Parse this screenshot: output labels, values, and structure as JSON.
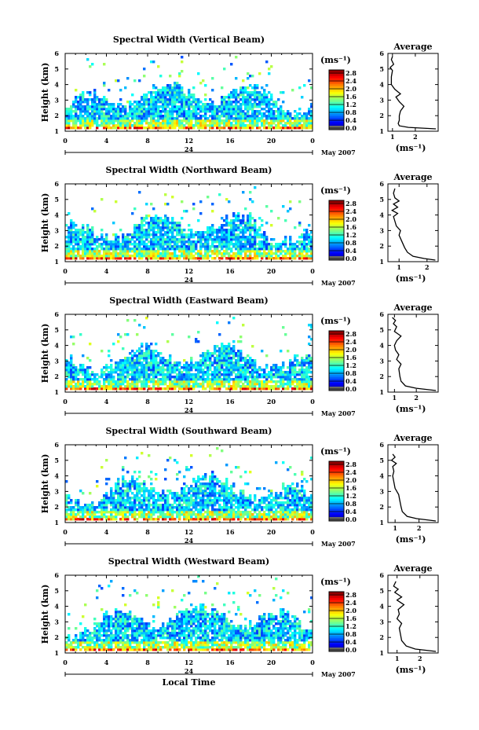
{
  "chart_data": [
    {
      "type": "heatmap",
      "title": "Spectral Width (Vertical Beam)",
      "ylabel": "Height (km)",
      "xticks": [
        "0",
        "4",
        "8",
        "12",
        "16",
        "20",
        "0"
      ],
      "yticks": [
        "1",
        "2",
        "3",
        "4",
        "5",
        "6"
      ],
      "xlim": [
        0,
        24
      ],
      "ylim": [
        1,
        6
      ],
      "day_label": "24",
      "date_label": "May 2007",
      "colorbar": {
        "unit": "(ms⁻¹)",
        "ticks": [
          "2.8",
          "2.4",
          "2.0",
          "1.6",
          "1.2",
          "0.8",
          "0.4",
          "0.0"
        ],
        "range": [
          0.0,
          2.8
        ]
      },
      "average": {
        "title": "Average",
        "xlabel": "(ms⁻¹)",
        "xticks": [
          "1",
          "2"
        ],
        "xlim": [
          0.8,
          3.0
        ],
        "yticks": [
          "1",
          "2",
          "3",
          "4",
          "5",
          "6"
        ],
        "profile": [
          [
            2.9,
            1.15
          ],
          [
            1.7,
            1.25
          ],
          [
            1.3,
            1.35
          ],
          [
            1.25,
            1.5
          ],
          [
            1.3,
            1.7
          ],
          [
            1.3,
            2.0
          ],
          [
            1.35,
            2.3
          ],
          [
            1.5,
            2.6
          ],
          [
            1.3,
            2.9
          ],
          [
            1.15,
            3.2
          ],
          [
            1.35,
            3.4
          ],
          [
            1.1,
            3.7
          ],
          [
            0.95,
            4.0
          ],
          [
            0.95,
            4.5
          ],
          [
            1.0,
            4.9
          ],
          [
            0.9,
            5.1
          ],
          [
            1.05,
            5.3
          ],
          [
            0.95,
            5.6
          ],
          [
            1.0,
            5.8
          ]
        ]
      }
    },
    {
      "type": "heatmap",
      "title": "Spectral Width (Northward Beam)",
      "ylabel": "Height (km)",
      "xticks": [
        "0",
        "4",
        "8",
        "12",
        "16",
        "20",
        "0"
      ],
      "yticks": [
        "1",
        "2",
        "3",
        "4",
        "5",
        "6"
      ],
      "xlim": [
        0,
        24
      ],
      "ylim": [
        1,
        6
      ],
      "day_label": "24",
      "date_label": "May 2007",
      "colorbar": {
        "unit": "(ms⁻¹)",
        "ticks": [
          "2.8",
          "2.4",
          "2.0",
          "1.6",
          "1.2",
          "0.8",
          "0.4",
          "0.0"
        ],
        "range": [
          0.0,
          2.8
        ]
      },
      "average": {
        "title": "Average",
        "xlabel": "(ms⁻¹)",
        "xticks": [
          "1",
          "2"
        ],
        "xlim": [
          0.6,
          2.4
        ],
        "yticks": [
          "1",
          "2",
          "3",
          "4",
          "5",
          "6"
        ],
        "profile": [
          [
            2.3,
            1.1
          ],
          [
            1.9,
            1.2
          ],
          [
            1.5,
            1.35
          ],
          [
            1.3,
            1.6
          ],
          [
            1.2,
            1.9
          ],
          [
            1.1,
            2.3
          ],
          [
            1.0,
            2.7
          ],
          [
            1.05,
            3.0
          ],
          [
            0.9,
            3.3
          ],
          [
            0.85,
            3.6
          ],
          [
            0.8,
            3.9
          ],
          [
            0.95,
            4.1
          ],
          [
            0.75,
            4.3
          ],
          [
            0.95,
            4.5
          ],
          [
            0.8,
            4.7
          ],
          [
            1.0,
            4.9
          ],
          [
            0.85,
            5.1
          ],
          [
            0.8,
            5.4
          ],
          [
            0.85,
            5.7
          ]
        ]
      }
    },
    {
      "type": "heatmap",
      "title": "Spectral Width (Eastward Beam)",
      "ylabel": "Height (km)",
      "xticks": [
        "0",
        "4",
        "8",
        "12",
        "16",
        "20",
        "0"
      ],
      "yticks": [
        "1",
        "2",
        "3",
        "4",
        "5",
        "6"
      ],
      "xlim": [
        0,
        24
      ],
      "ylim": [
        1,
        6
      ],
      "day_label": "24",
      "date_label": "May 2007",
      "colorbar": {
        "unit": "(ms⁻¹)",
        "ticks": [
          "2.8",
          "2.4",
          "2.0",
          "1.6",
          "1.2",
          "0.8",
          "0.4",
          "0.0"
        ],
        "range": [
          0.0,
          2.8
        ]
      },
      "average": {
        "title": "Average",
        "xlabel": "(ms⁻¹)",
        "xticks": [
          "1",
          "2"
        ],
        "xlim": [
          0.7,
          3.0
        ],
        "yticks": [
          "1",
          "2",
          "3",
          "4",
          "5",
          "6"
        ],
        "profile": [
          [
            2.9,
            1.1
          ],
          [
            2.0,
            1.25
          ],
          [
            1.5,
            1.4
          ],
          [
            1.3,
            1.7
          ],
          [
            1.25,
            2.0
          ],
          [
            1.2,
            2.5
          ],
          [
            1.3,
            2.8
          ],
          [
            1.1,
            3.1
          ],
          [
            1.2,
            3.4
          ],
          [
            1.05,
            3.7
          ],
          [
            1.0,
            4.0
          ],
          [
            1.1,
            4.3
          ],
          [
            1.3,
            4.6
          ],
          [
            1.0,
            4.9
          ],
          [
            1.1,
            5.2
          ],
          [
            0.95,
            5.4
          ],
          [
            1.05,
            5.6
          ],
          [
            0.9,
            5.8
          ]
        ]
      }
    },
    {
      "type": "heatmap",
      "title": "Spectral Width (Southward Beam)",
      "ylabel": "Height (km)",
      "xticks": [
        "0",
        "4",
        "8",
        "12",
        "16",
        "20",
        "0"
      ],
      "yticks": [
        "1",
        "2",
        "3",
        "4",
        "5",
        "6"
      ],
      "xlim": [
        0,
        24
      ],
      "ylim": [
        1,
        6
      ],
      "day_label": "24",
      "date_label": "May 2007",
      "colorbar": {
        "unit": "(ms⁻¹)",
        "ticks": [
          "2.8",
          "2.4",
          "2.0",
          "1.6",
          "1.2",
          "0.8",
          "0.4",
          "0.0"
        ],
        "range": [
          0.0,
          2.8
        ]
      },
      "average": {
        "title": "Average",
        "xlabel": "(ms⁻¹)",
        "xticks": [
          "1",
          "2"
        ],
        "xlim": [
          0.7,
          2.8
        ],
        "yticks": [
          "1",
          "2",
          "3",
          "4",
          "5",
          "6"
        ],
        "profile": [
          [
            2.7,
            1.1
          ],
          [
            1.9,
            1.25
          ],
          [
            1.5,
            1.4
          ],
          [
            1.3,
            1.7
          ],
          [
            1.25,
            2.0
          ],
          [
            1.2,
            2.4
          ],
          [
            1.15,
            2.8
          ],
          [
            1.0,
            3.2
          ],
          [
            0.95,
            3.6
          ],
          [
            0.9,
            4.0
          ],
          [
            0.95,
            4.3
          ],
          [
            0.9,
            4.6
          ],
          [
            1.05,
            4.8
          ],
          [
            0.85,
            5.0
          ],
          [
            1.0,
            5.2
          ],
          [
            0.9,
            5.4
          ]
        ]
      }
    },
    {
      "type": "heatmap",
      "title": "Spectral Width (Westward Beam)",
      "ylabel": "Height (km)",
      "xlabel": "Local Time",
      "xticks": [
        "0",
        "4",
        "8",
        "12",
        "16",
        "20",
        "0"
      ],
      "yticks": [
        "1",
        "2",
        "3",
        "4",
        "5",
        "6"
      ],
      "xlim": [
        0,
        24
      ],
      "ylim": [
        1,
        6
      ],
      "day_label": "24",
      "date_label": "May 2007",
      "colorbar": {
        "unit": "(ms⁻¹)",
        "ticks": [
          "2.8",
          "2.4",
          "2.0",
          "1.6",
          "1.2",
          "0.8",
          "0.4",
          "0.0"
        ],
        "range": [
          0.0,
          2.8
        ]
      },
      "average": {
        "title": "Average",
        "xlabel": "(ms⁻¹)",
        "xticks": [
          "1",
          "2"
        ],
        "xlim": [
          0.6,
          2.8
        ],
        "yticks": [
          "1",
          "2",
          "3",
          "4",
          "5",
          "6"
        ],
        "profile": [
          [
            2.7,
            1.1
          ],
          [
            1.8,
            1.25
          ],
          [
            1.4,
            1.45
          ],
          [
            1.2,
            1.8
          ],
          [
            1.15,
            2.2
          ],
          [
            1.1,
            2.6
          ],
          [
            1.2,
            2.9
          ],
          [
            1.0,
            3.2
          ],
          [
            1.1,
            3.5
          ],
          [
            1.05,
            3.8
          ],
          [
            1.3,
            4.1
          ],
          [
            1.0,
            4.4
          ],
          [
            1.2,
            4.6
          ],
          [
            0.9,
            4.9
          ],
          [
            1.05,
            5.1
          ],
          [
            0.85,
            5.3
          ],
          [
            0.95,
            5.6
          ]
        ]
      }
    }
  ]
}
